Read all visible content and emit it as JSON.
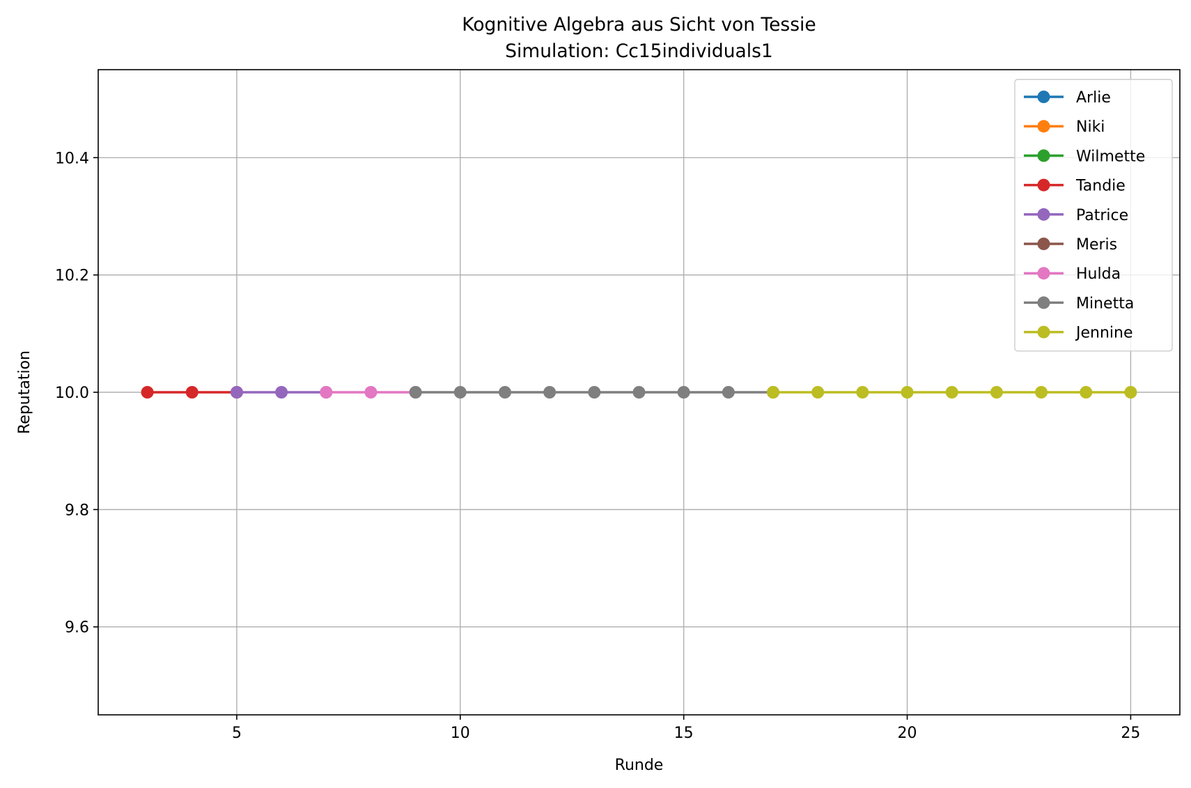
{
  "chart_data": {
    "type": "line",
    "title": "Kognitive Algebra aus Sicht von Tessie",
    "subtitle": "Simulation: Cc15individuals1",
    "xlabel": "Runde",
    "ylabel": "Reputation",
    "xlim": [
      1.9,
      26.1
    ],
    "ylim": [
      9.45,
      10.55
    ],
    "xticks": [
      5,
      10,
      15,
      20,
      25
    ],
    "yticks": [
      9.6,
      9.8,
      10.0,
      10.2,
      10.4
    ],
    "xtick_labels": [
      "5",
      "10",
      "15",
      "20",
      "25"
    ],
    "ytick_labels": [
      "9.6",
      "9.8",
      "10.0",
      "10.2",
      "10.4"
    ],
    "grid": true,
    "legend_position": "top-right",
    "series": [
      {
        "name": "Arlie",
        "color": "#1f77b4",
        "x": [],
        "y": []
      },
      {
        "name": "Niki",
        "color": "#ff7f0e",
        "x": [],
        "y": []
      },
      {
        "name": "Wilmette",
        "color": "#2ca02c",
        "x": [],
        "y": []
      },
      {
        "name": "Tandie",
        "color": "#d62728",
        "x": [
          3,
          4,
          5
        ],
        "y": [
          10.0,
          10.0,
          10.0
        ]
      },
      {
        "name": "Patrice",
        "color": "#9467bd",
        "x": [
          5,
          6,
          7
        ],
        "y": [
          10.0,
          10.0,
          10.0
        ]
      },
      {
        "name": "Meris",
        "color": "#8c564b",
        "x": [],
        "y": []
      },
      {
        "name": "Hulda",
        "color": "#e377c2",
        "x": [
          7,
          8,
          9
        ],
        "y": [
          10.0,
          10.0,
          10.0
        ]
      },
      {
        "name": "Minetta",
        "color": "#7f7f7f",
        "x": [
          9,
          10,
          11,
          12,
          13,
          14,
          15,
          16,
          17
        ],
        "y": [
          10.0,
          10.0,
          10.0,
          10.0,
          10.0,
          10.0,
          10.0,
          10.0,
          10.0
        ]
      },
      {
        "name": "Jennine",
        "color": "#bcbd22",
        "x": [
          17,
          18,
          19,
          20,
          21,
          22,
          23,
          24,
          25
        ],
        "y": [
          10.0,
          10.0,
          10.0,
          10.0,
          10.0,
          10.0,
          10.0,
          10.0,
          10.0
        ]
      }
    ]
  }
}
